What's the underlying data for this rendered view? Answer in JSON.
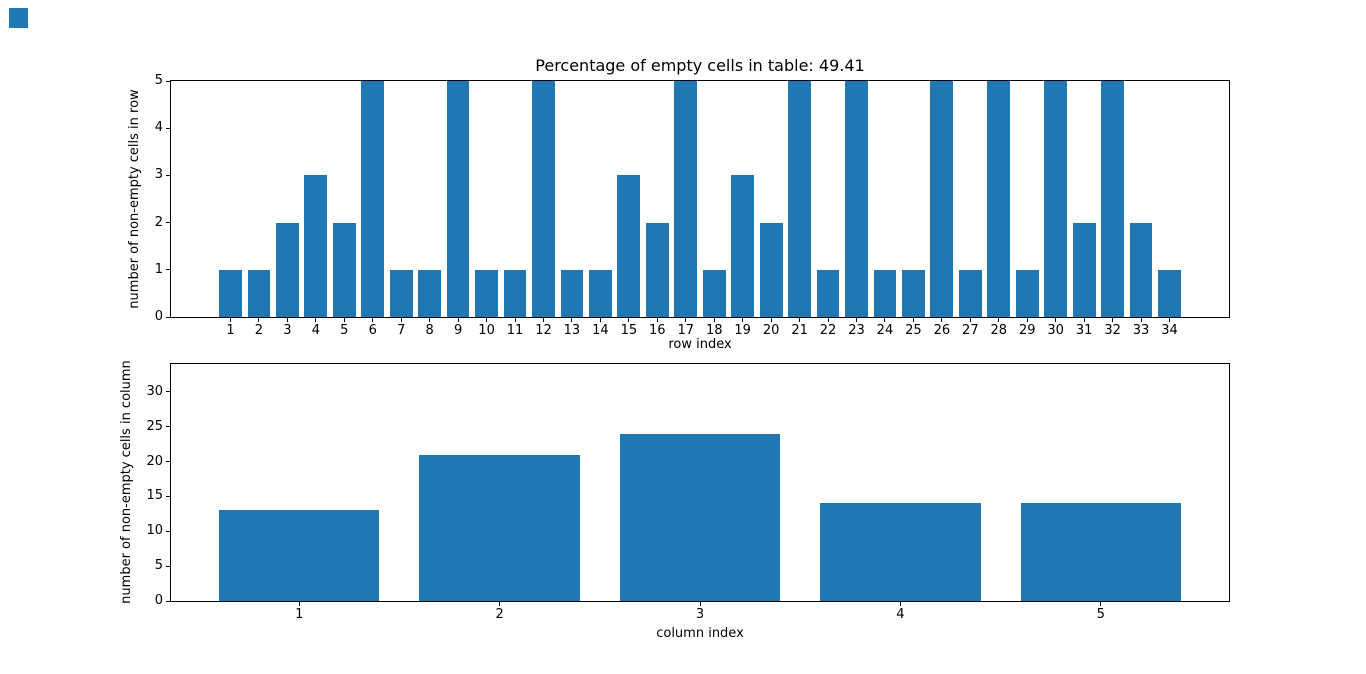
{
  "figure": {
    "background": "#ffffff"
  },
  "marker": {
    "color": "#1f77b4"
  },
  "chart_data": [
    {
      "type": "bar",
      "title": "Percentage of empty cells in table: 49.41",
      "xlabel": "row index",
      "ylabel": "number of non-empty cells in row",
      "categories": [
        1,
        2,
        3,
        4,
        5,
        6,
        7,
        8,
        9,
        10,
        11,
        12,
        13,
        14,
        15,
        16,
        17,
        18,
        19,
        20,
        21,
        22,
        23,
        24,
        25,
        26,
        27,
        28,
        29,
        30,
        31,
        32,
        33,
        34
      ],
      "values": [
        1,
        1,
        2,
        3,
        2,
        5,
        1,
        1,
        5,
        1,
        1,
        5,
        1,
        1,
        3,
        2,
        5,
        1,
        3,
        2,
        5,
        1,
        5,
        1,
        1,
        5,
        1,
        5,
        1,
        5,
        2,
        5,
        2,
        1
      ],
      "bar_color": "#1f77b4",
      "bar_width": 0.8,
      "xlim": [
        -1.09,
        36.09
      ],
      "ylim": [
        0,
        5
      ],
      "yticks": [
        0,
        1,
        2,
        3,
        4,
        5
      ],
      "grid": false,
      "legend_position": "none"
    },
    {
      "type": "bar",
      "title": "",
      "xlabel": "column index",
      "ylabel": "number of non-empty cells in column",
      "categories": [
        1,
        2,
        3,
        4,
        5
      ],
      "values": [
        13,
        21,
        24,
        14,
        14
      ],
      "bar_color": "#1f77b4",
      "bar_width": 0.8,
      "xlim": [
        0.36,
        5.64
      ],
      "ylim": [
        0,
        34
      ],
      "yticks": [
        0,
        5,
        10,
        15,
        20,
        25,
        30
      ],
      "grid": false,
      "legend_position": "none"
    }
  ]
}
